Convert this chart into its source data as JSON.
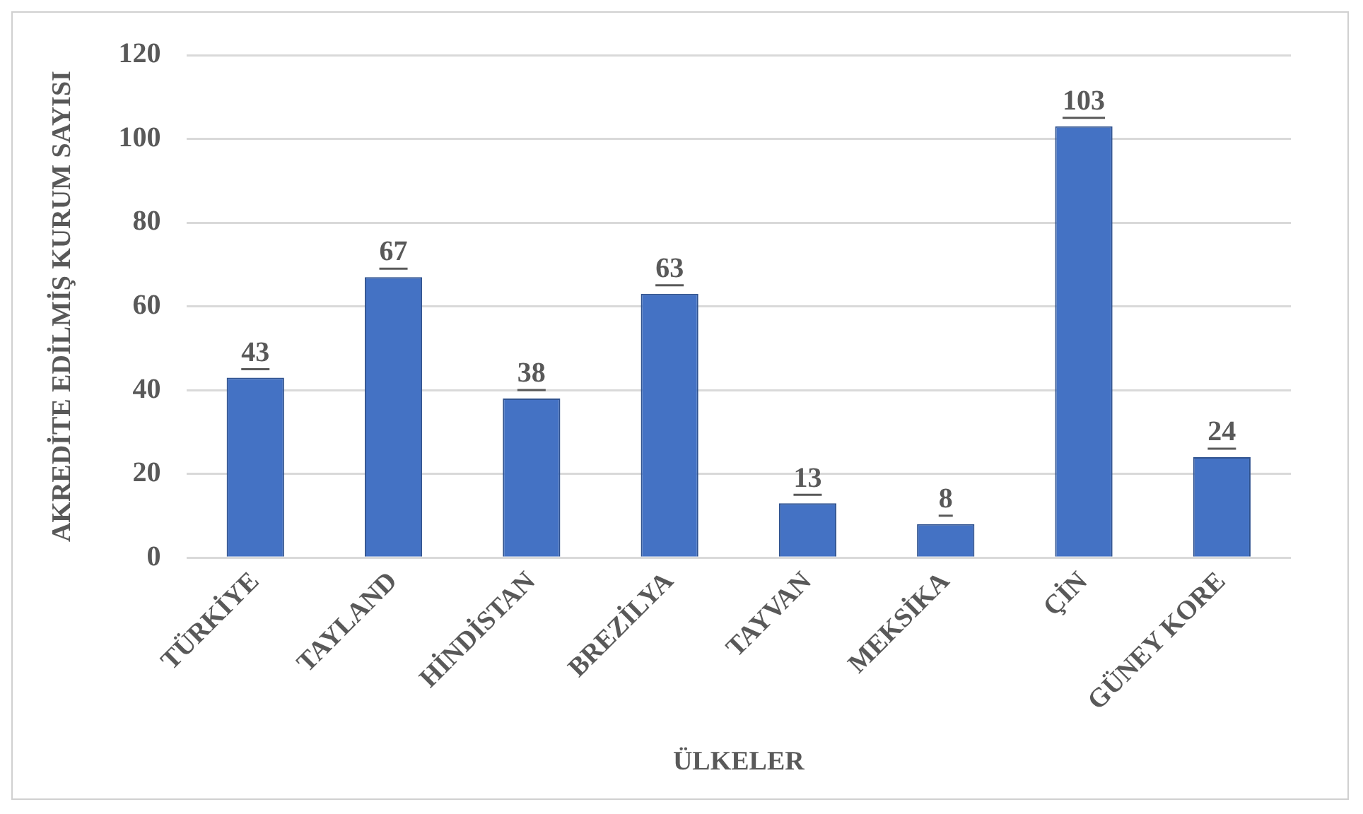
{
  "chart_data": {
    "type": "bar",
    "xlabel": "ÜLKELER",
    "ylabel": "AKREDİTE EDİLMİŞ KURUM SAYISI",
    "categories": [
      "TÜRKİYE",
      "TAYLAND",
      "HİNDİSTAN",
      "BREZİLYA",
      "TAYVAN",
      "MEKSİKA",
      "ÇİN",
      "GÜNEY KORE"
    ],
    "values": [
      43,
      67,
      38,
      63,
      13,
      8,
      103,
      24
    ],
    "color": "#4472c4",
    "ylim": [
      0,
      120
    ],
    "yticks": [
      0,
      20,
      40,
      60,
      80,
      100,
      120
    ],
    "grid": "y",
    "data_labels": true,
    "legend": false
  }
}
